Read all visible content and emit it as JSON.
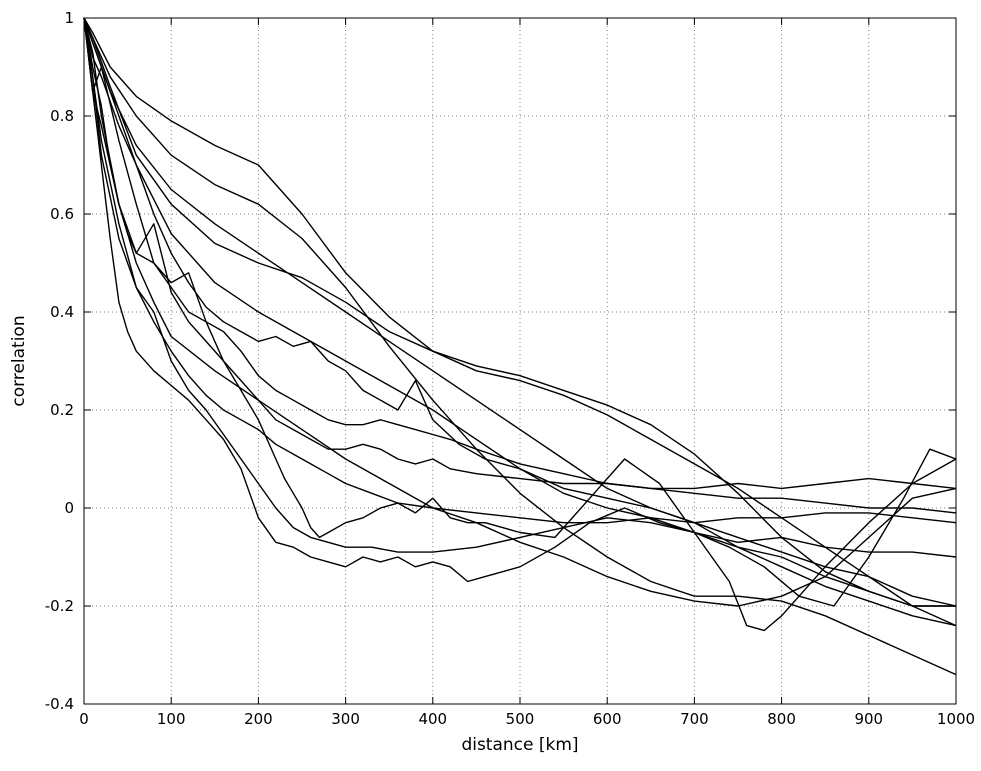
{
  "chart_data": {
    "type": "line",
    "title": "",
    "xlabel": "distance [km]",
    "ylabel": "correlation",
    "xlim": [
      0,
      1000
    ],
    "ylim": [
      -0.4,
      1
    ],
    "grid": true,
    "legend": "none",
    "line_color": "#000000",
    "xticks": [
      0,
      100,
      200,
      300,
      400,
      500,
      600,
      700,
      800,
      900,
      1000
    ],
    "yticks": [
      -0.4,
      -0.2,
      0,
      0.2,
      0.4,
      0.6,
      0.8,
      1
    ],
    "xtick_labels": [
      "0",
      "100",
      "200",
      "300",
      "400",
      "500",
      "600",
      "700",
      "800",
      "900",
      "1000"
    ],
    "ytick_labels": [
      "-0.4",
      "-0.2",
      "0",
      "0.2",
      "0.4",
      "0.6",
      "0.8",
      "1"
    ],
    "series": [
      {
        "x": [
          0,
          10,
          30,
          60,
          100,
          150,
          200,
          250,
          300,
          350,
          400,
          450,
          500,
          550,
          600,
          650,
          700,
          750,
          800,
          850,
          900,
          950,
          1000
        ],
        "y": [
          1.0,
          0.97,
          0.9,
          0.84,
          0.79,
          0.74,
          0.7,
          0.6,
          0.48,
          0.39,
          0.32,
          0.28,
          0.26,
          0.23,
          0.19,
          0.14,
          0.09,
          0.04,
          -0.02,
          -0.08,
          -0.14,
          -0.2,
          -0.24
        ]
      },
      {
        "x": [
          0,
          10,
          30,
          60,
          100,
          150,
          200,
          250,
          300,
          350,
          400,
          450,
          500,
          550,
          600,
          650,
          700,
          750,
          800,
          850,
          900,
          950,
          1000
        ],
        "y": [
          1.0,
          0.96,
          0.88,
          0.8,
          0.72,
          0.66,
          0.62,
          0.55,
          0.45,
          0.33,
          0.22,
          0.12,
          0.03,
          -0.04,
          -0.1,
          -0.15,
          -0.18,
          -0.18,
          -0.19,
          -0.22,
          -0.26,
          -0.3,
          -0.34
        ]
      },
      {
        "x": [
          0,
          10,
          30,
          60,
          100,
          150,
          200,
          250,
          300,
          350,
          400,
          450,
          500,
          550,
          600,
          650,
          700,
          750,
          800,
          850,
          900,
          950,
          1000
        ],
        "y": [
          1.0,
          0.95,
          0.85,
          0.74,
          0.65,
          0.58,
          0.52,
          0.46,
          0.4,
          0.34,
          0.28,
          0.22,
          0.16,
          0.1,
          0.04,
          0.0,
          -0.03,
          -0.08,
          -0.12,
          -0.16,
          -0.19,
          -0.22,
          -0.24
        ]
      },
      {
        "x": [
          0,
          10,
          30,
          60,
          100,
          150,
          200,
          250,
          300,
          350,
          400,
          450,
          500,
          550,
          600,
          650,
          700,
          750,
          800,
          850,
          900,
          950,
          1000
        ],
        "y": [
          1.0,
          0.96,
          0.86,
          0.72,
          0.62,
          0.54,
          0.5,
          0.47,
          0.42,
          0.36,
          0.32,
          0.29,
          0.27,
          0.24,
          0.21,
          0.17,
          0.11,
          0.03,
          -0.06,
          -0.13,
          -0.17,
          -0.2,
          -0.2
        ]
      },
      {
        "x": [
          0,
          10,
          30,
          60,
          100,
          150,
          200,
          250,
          300,
          350,
          400,
          450,
          500,
          550,
          600,
          650,
          700,
          750,
          800,
          850,
          900,
          950,
          1000
        ],
        "y": [
          1.0,
          0.95,
          0.85,
          0.7,
          0.56,
          0.46,
          0.4,
          0.35,
          0.3,
          0.25,
          0.2,
          0.14,
          0.08,
          0.03,
          0.0,
          -0.02,
          -0.05,
          -0.08,
          -0.1,
          -0.14,
          -0.17,
          -0.2,
          -0.2
        ]
      },
      {
        "x": [
          0,
          10,
          20,
          40,
          60,
          80,
          100,
          120,
          140,
          160,
          180,
          200,
          220,
          240,
          260,
          280,
          300,
          320,
          340,
          360,
          380,
          400,
          430,
          460,
          500,
          550,
          600,
          650,
          700,
          750,
          800,
          850,
          900,
          950,
          1000
        ],
        "y": [
          1.0,
          0.92,
          0.88,
          0.78,
          0.7,
          0.6,
          0.52,
          0.46,
          0.41,
          0.38,
          0.36,
          0.34,
          0.35,
          0.33,
          0.34,
          0.3,
          0.28,
          0.24,
          0.22,
          0.2,
          0.26,
          0.18,
          0.13,
          0.1,
          0.08,
          0.04,
          0.02,
          0.0,
          -0.03,
          -0.06,
          -0.09,
          -0.12,
          -0.14,
          -0.18,
          -0.2
        ]
      },
      {
        "x": [
          0,
          10,
          20,
          40,
          60,
          80,
          100,
          120,
          140,
          160,
          180,
          200,
          220,
          240,
          260,
          280,
          300,
          320,
          340,
          360,
          380,
          400,
          420,
          450,
          500,
          550,
          600,
          650,
          700,
          750,
          800,
          850,
          900,
          950,
          1000
        ],
        "y": [
          1.0,
          0.85,
          0.9,
          0.75,
          0.62,
          0.5,
          0.45,
          0.4,
          0.38,
          0.36,
          0.32,
          0.27,
          0.24,
          0.22,
          0.2,
          0.18,
          0.17,
          0.17,
          0.18,
          0.17,
          0.16,
          0.15,
          0.14,
          0.12,
          0.09,
          0.07,
          0.05,
          0.04,
          0.03,
          0.02,
          0.02,
          0.01,
          0.0,
          0.0,
          -0.01
        ]
      },
      {
        "x": [
          0,
          10,
          20,
          40,
          60,
          80,
          100,
          120,
          140,
          160,
          180,
          200,
          220,
          240,
          260,
          280,
          300,
          320,
          340,
          360,
          380,
          400,
          420,
          450,
          500,
          550,
          600,
          650,
          700,
          750,
          800,
          850,
          900,
          950,
          1000
        ],
        "y": [
          1.0,
          0.85,
          0.78,
          0.62,
          0.52,
          0.58,
          0.44,
          0.38,
          0.34,
          0.3,
          0.26,
          0.22,
          0.18,
          0.16,
          0.14,
          0.12,
          0.12,
          0.13,
          0.12,
          0.1,
          0.09,
          0.1,
          0.08,
          0.07,
          0.06,
          0.05,
          0.05,
          0.04,
          0.04,
          0.05,
          0.04,
          0.05,
          0.06,
          0.05,
          0.04
        ]
      },
      {
        "x": [
          0,
          10,
          20,
          40,
          60,
          80,
          100,
          120,
          140,
          160,
          180,
          200,
          220,
          240,
          260,
          280,
          300,
          330,
          360,
          400,
          450,
          500,
          550,
          600,
          650,
          700,
          750,
          800,
          850,
          900,
          950,
          1000
        ],
        "y": [
          1.0,
          0.88,
          0.75,
          0.58,
          0.45,
          0.38,
          0.32,
          0.27,
          0.23,
          0.2,
          0.18,
          0.16,
          0.13,
          0.11,
          0.09,
          0.07,
          0.05,
          0.03,
          0.01,
          0.0,
          -0.01,
          -0.02,
          -0.03,
          -0.03,
          -0.02,
          -0.03,
          -0.02,
          -0.02,
          -0.01,
          -0.01,
          -0.02,
          -0.03
        ]
      },
      {
        "x": [
          0,
          10,
          20,
          40,
          60,
          80,
          100,
          120,
          140,
          160,
          180,
          200,
          220,
          240,
          260,
          280,
          300,
          330,
          360,
          400,
          450,
          500,
          550,
          600,
          650,
          700,
          750,
          800,
          850,
          900,
          950,
          1000
        ],
        "y": [
          1.0,
          0.88,
          0.72,
          0.55,
          0.45,
          0.4,
          0.3,
          0.24,
          0.2,
          0.15,
          0.1,
          0.05,
          0.0,
          -0.04,
          -0.06,
          -0.07,
          -0.08,
          -0.08,
          -0.09,
          -0.09,
          -0.08,
          -0.06,
          -0.04,
          -0.02,
          -0.03,
          -0.05,
          -0.07,
          -0.06,
          -0.08,
          -0.09,
          -0.09,
          -0.1
        ]
      },
      {
        "x": [
          0,
          10,
          20,
          30,
          40,
          50,
          60,
          80,
          100,
          120,
          140,
          160,
          180,
          200,
          210,
          220,
          230,
          240,
          250,
          260,
          270,
          280,
          300,
          320,
          340,
          360,
          380,
          400,
          420,
          440,
          460,
          480,
          500,
          540,
          580,
          620,
          660,
          700,
          740,
          760,
          780,
          800,
          850,
          900,
          950,
          1000
        ],
        "y": [
          1.0,
          0.9,
          0.82,
          0.7,
          0.62,
          0.56,
          0.52,
          0.5,
          0.46,
          0.48,
          0.38,
          0.3,
          0.24,
          0.18,
          0.14,
          0.1,
          0.06,
          0.03,
          0.0,
          -0.04,
          -0.06,
          -0.05,
          -0.03,
          -0.02,
          0.0,
          0.01,
          -0.01,
          0.02,
          -0.02,
          -0.03,
          -0.03,
          -0.04,
          -0.05,
          -0.06,
          0.02,
          0.1,
          0.05,
          -0.05,
          -0.15,
          -0.24,
          -0.25,
          -0.22,
          -0.12,
          -0.03,
          0.05,
          0.1
        ]
      },
      {
        "x": [
          0,
          10,
          20,
          30,
          40,
          50,
          60,
          80,
          100,
          120,
          140,
          160,
          180,
          200,
          220,
          240,
          250,
          260,
          280,
          300,
          320,
          340,
          360,
          380,
          400,
          420,
          440,
          460,
          480,
          500,
          540,
          580,
          620,
          660,
          700,
          740,
          780,
          820,
          860,
          900,
          940,
          970,
          1000
        ],
        "y": [
          1.0,
          0.85,
          0.7,
          0.55,
          0.42,
          0.36,
          0.32,
          0.28,
          0.25,
          0.22,
          0.18,
          0.14,
          0.08,
          -0.02,
          -0.07,
          -0.08,
          -0.09,
          -0.1,
          -0.11,
          -0.12,
          -0.1,
          -0.11,
          -0.1,
          -0.12,
          -0.11,
          -0.12,
          -0.15,
          -0.14,
          -0.13,
          -0.12,
          -0.08,
          -0.03,
          0.0,
          -0.03,
          -0.05,
          -0.08,
          -0.12,
          -0.18,
          -0.2,
          -0.1,
          0.02,
          0.12,
          0.1
        ]
      },
      {
        "x": [
          0,
          10,
          20,
          40,
          60,
          80,
          100,
          150,
          200,
          250,
          300,
          350,
          400,
          450,
          500,
          550,
          600,
          650,
          700,
          750,
          800,
          850,
          900,
          950,
          1000
        ],
        "y": [
          1.0,
          0.93,
          0.8,
          0.62,
          0.5,
          0.42,
          0.35,
          0.28,
          0.22,
          0.16,
          0.1,
          0.05,
          0.0,
          -0.03,
          -0.07,
          -0.1,
          -0.14,
          -0.17,
          -0.19,
          -0.2,
          -0.18,
          -0.14,
          -0.06,
          0.02,
          0.04
        ]
      }
    ]
  }
}
